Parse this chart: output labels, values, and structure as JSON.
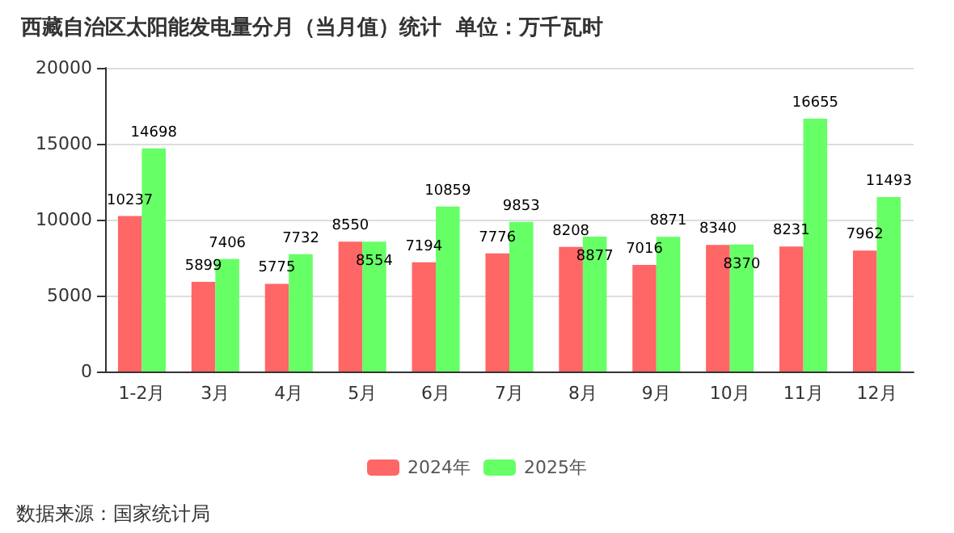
{
  "chart_data": {
    "type": "bar",
    "title": "西藏自治区太阳能发电量分月（当月值）统计  单位：万千瓦时",
    "categories": [
      "1-2月",
      "3月",
      "4月",
      "5月",
      "6月",
      "7月",
      "8月",
      "9月",
      "10月",
      "11月",
      "12月"
    ],
    "series": [
      {
        "name": "2024年",
        "color": "#ff6666",
        "values": [
          10237,
          5899,
          5775,
          8550,
          7194,
          7776,
          8208,
          7016,
          8340,
          8231,
          7962
        ]
      },
      {
        "name": "2025年",
        "color": "#66ff66",
        "values": [
          14698,
          7406,
          7732,
          8554,
          10859,
          9853,
          8877,
          8871,
          8370,
          16655,
          11493
        ]
      }
    ],
    "ylim": [
      0,
      20000
    ],
    "yticks": [
      0,
      5000,
      10000,
      15000,
      20000
    ],
    "grid": "y",
    "legend": "bottom",
    "data_labels": true,
    "annotations": [
      "数据来源：国家统计局"
    ]
  }
}
